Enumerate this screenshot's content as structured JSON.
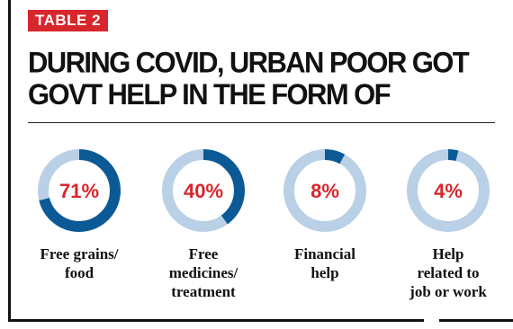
{
  "header": {
    "tag": "TABLE 2",
    "title_line1": "DURING COVID, URBAN POOR GOT",
    "title_line2": "GOVT HELP IN THE FORM OF"
  },
  "colors": {
    "accent": "#d7262c",
    "ring_fill": "#0b5a96",
    "ring_track": "#b9d0e6"
  },
  "chart_data": {
    "type": "pie",
    "subtype": "donut",
    "title": "DURING COVID, URBAN POOR GOT GOVT HELP IN THE FORM OF",
    "categories": [
      [
        "Free grains/",
        "food"
      ],
      [
        "Free",
        "medicines/",
        "treatment"
      ],
      [
        "Financial",
        "help"
      ],
      [
        "Help",
        "related to",
        "job or work"
      ]
    ],
    "values": [
      71,
      40,
      8,
      4
    ],
    "labels": [
      "71%",
      "40%",
      "8%",
      "4%"
    ]
  }
}
